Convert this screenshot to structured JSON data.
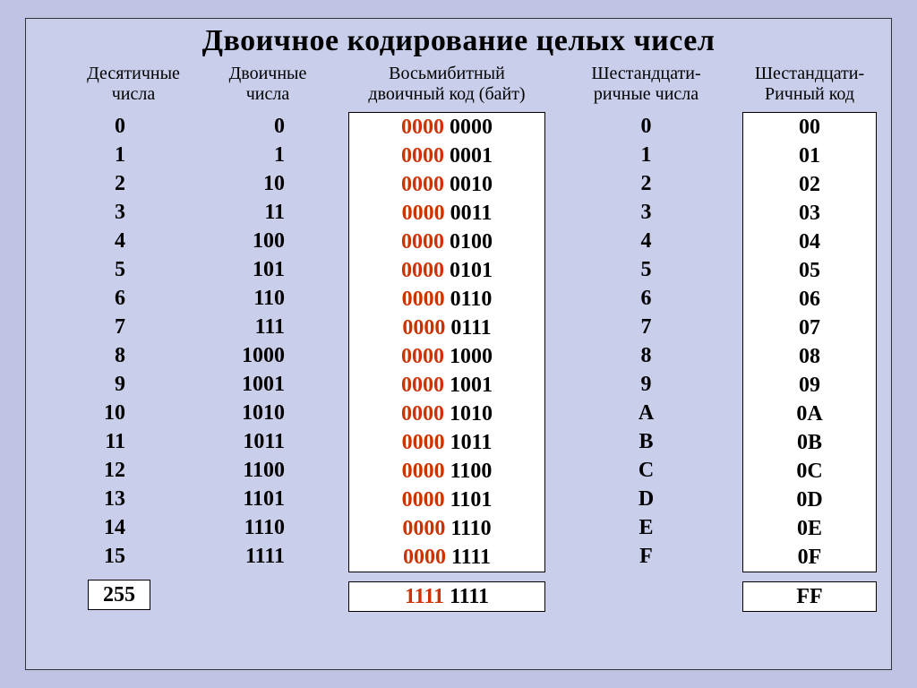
{
  "title": "Двоичное кодирование целых чисел",
  "background_color": "#c0c3e4",
  "panel_color": "#c9ceeb",
  "box_bg": "#ffffff",
  "red": "#cc3300",
  "headers": {
    "c1_line1": "Десятичные",
    "c1_line2": "числа",
    "c2_line1": "Двоичные",
    "c2_line2": "числа",
    "c3_line1": "Восьмибитный",
    "c3_line2": "двоичный код (байт)",
    "c4_line1": "Шестандцати-",
    "c4_line2": "ричные числа",
    "c5_line1": "Шестандцати-",
    "c5_line2": "Ричный код"
  },
  "rows": [
    {
      "dec": "0",
      "bin": "0",
      "byte_hi": "0000",
      "byte_lo": "0000",
      "hex1": "0",
      "hex2": "00"
    },
    {
      "dec": "1",
      "bin": "1",
      "byte_hi": "0000",
      "byte_lo": "0001",
      "hex1": "1",
      "hex2": "01"
    },
    {
      "dec": "2",
      "bin": "10",
      "byte_hi": "0000",
      "byte_lo": "0010",
      "hex1": "2",
      "hex2": "02"
    },
    {
      "dec": "3",
      "bin": "11",
      "byte_hi": "0000",
      "byte_lo": "0011",
      "hex1": "3",
      "hex2": "03"
    },
    {
      "dec": "4",
      "bin": "100",
      "byte_hi": "0000",
      "byte_lo": "0100",
      "hex1": "4",
      "hex2": "04"
    },
    {
      "dec": "5",
      "bin": "101",
      "byte_hi": "0000",
      "byte_lo": "0101",
      "hex1": "5",
      "hex2": "05"
    },
    {
      "dec": "6",
      "bin": "110",
      "byte_hi": "0000",
      "byte_lo": "0110",
      "hex1": "6",
      "hex2": "06"
    },
    {
      "dec": "7",
      "bin": "111",
      "byte_hi": "0000",
      "byte_lo": "0111",
      "hex1": "7",
      "hex2": "07"
    },
    {
      "dec": "8",
      "bin": "1000",
      "byte_hi": "0000",
      "byte_lo": "1000",
      "hex1": "8",
      "hex2": "08"
    },
    {
      "dec": "9",
      "bin": "1001",
      "byte_hi": "0000",
      "byte_lo": "1001",
      "hex1": "9",
      "hex2": "09"
    },
    {
      "dec": "10",
      "bin": "1010",
      "byte_hi": "0000",
      "byte_lo": "1010",
      "hex1": "A",
      "hex2": "0A"
    },
    {
      "dec": "11",
      "bin": "1011",
      "byte_hi": "0000",
      "byte_lo": "1011",
      "hex1": "B",
      "hex2": "0B"
    },
    {
      "dec": "12",
      "bin": "1100",
      "byte_hi": "0000",
      "byte_lo": "1100",
      "hex1": "C",
      "hex2": "0C"
    },
    {
      "dec": "13",
      "bin": "1101",
      "byte_hi": "0000",
      "byte_lo": "1101",
      "hex1": "D",
      "hex2": "0D"
    },
    {
      "dec": "14",
      "bin": "1110",
      "byte_hi": "0000",
      "byte_lo": "1110",
      "hex1": "E",
      "hex2": "0E"
    },
    {
      "dec": "15",
      "bin": "1111",
      "byte_hi": "0000",
      "byte_lo": "1111",
      "hex1": "F",
      "hex2": "0F"
    }
  ],
  "footer": {
    "dec": "255",
    "byte_hi": "1111",
    "byte_lo": "1111",
    "hex2": "FF"
  },
  "typography": {
    "title_fontsize": 34,
    "header_fontsize": 20,
    "cell_fontsize": 24,
    "font_family": "Times New Roman"
  }
}
